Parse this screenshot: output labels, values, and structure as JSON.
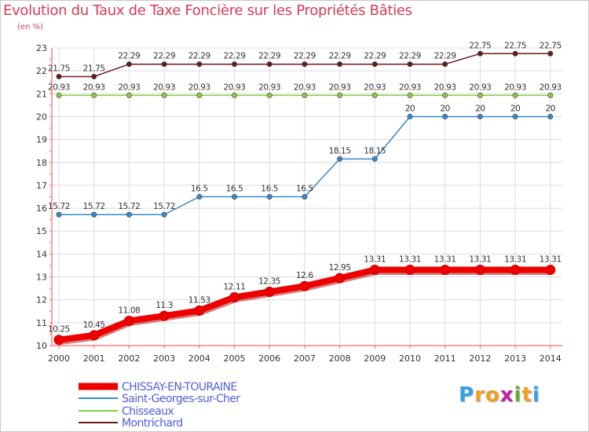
{
  "title": "Evolution du Taux de Taxe Foncière sur les Propriétés Bâties",
  "unit_label": "(en %)",
  "logo": {
    "text": "Proxiti",
    "colors": [
      "#3aa0e0",
      "#f0a020",
      "#f0a020",
      "#c020a0",
      "#60b030",
      "#f0a020",
      "#3aa0e0"
    ]
  },
  "chart_data": {
    "type": "line",
    "title": "Evolution du Taux de Taxe Foncière sur les Propriétés Bâties",
    "ylabel": "(en %)",
    "xlabel": "",
    "ylim": [
      10,
      23
    ],
    "yticks": [
      10,
      11,
      12,
      13,
      14,
      15,
      16,
      17,
      18,
      19,
      20,
      21,
      22,
      23
    ],
    "grid": true,
    "legend_position": "bottom-left",
    "x": [
      "2000",
      "2001",
      "2002",
      "2003",
      "2004",
      "2005",
      "2006",
      "2007",
      "2008",
      "2009",
      "2010",
      "2011",
      "2012",
      "2013",
      "2014"
    ],
    "series": [
      {
        "name": "Montrichard",
        "color": "#6b1a1a",
        "values": [
          21.75,
          21.75,
          22.29,
          22.29,
          22.29,
          22.29,
          22.29,
          22.29,
          22.29,
          22.29,
          22.29,
          22.29,
          22.75,
          22.75,
          22.75
        ],
        "labels": [
          "21.75",
          "21.75",
          "22.29",
          "22.29",
          "22.29",
          "22.29",
          "22.29",
          "22.29",
          "22.29",
          "22.29",
          "22.29",
          "22.29",
          "22.75",
          "22.75",
          "22.75"
        ]
      },
      {
        "name": "Chisseaux",
        "color": "#88cc44",
        "values": [
          20.93,
          20.93,
          20.93,
          20.93,
          20.93,
          20.93,
          20.93,
          20.93,
          20.93,
          20.93,
          20.93,
          20.93,
          20.93,
          20.93,
          20.93
        ],
        "labels": [
          "20.93",
          "20.93",
          "20.93",
          "20.93",
          "20.93",
          "20.93",
          "20.93",
          "20.93",
          "20.93",
          "20.93",
          "20.93",
          "20.93",
          "20.93",
          "20.93",
          "20.93"
        ]
      },
      {
        "name": "Saint-Georges-sur-Cher",
        "color": "#3a88c8",
        "values": [
          15.72,
          15.72,
          15.72,
          15.72,
          16.5,
          16.5,
          16.5,
          16.5,
          18.15,
          18.15,
          20,
          20,
          20,
          20,
          20
        ],
        "labels": [
          "15.72",
          "15.72",
          "15.72",
          "15.72",
          "16.5",
          "16.5",
          "16.5",
          "16.5",
          "18.15",
          "18.15",
          "20",
          "20",
          "20",
          "20",
          "20"
        ]
      },
      {
        "name": "CHISSAY-EN-TOURAINE",
        "color": "#ee0000",
        "values": [
          10.25,
          10.45,
          11.08,
          11.3,
          11.53,
          12.11,
          12.35,
          12.6,
          12.95,
          13.31,
          13.31,
          13.31,
          13.31,
          13.31,
          13.31
        ],
        "labels": [
          "10.25",
          "10.45",
          "11.08",
          "11.3",
          "11.53",
          "12.11",
          "12.35",
          "12.6",
          "12.95",
          "13.31",
          "13.31",
          "13.31",
          "13.31",
          "13.31",
          "13.31"
        ]
      }
    ],
    "legend": [
      "CHISSAY-EN-TOURAINE",
      "Saint-Georges-sur-Cher",
      "Chisseaux",
      "Montrichard"
    ]
  }
}
